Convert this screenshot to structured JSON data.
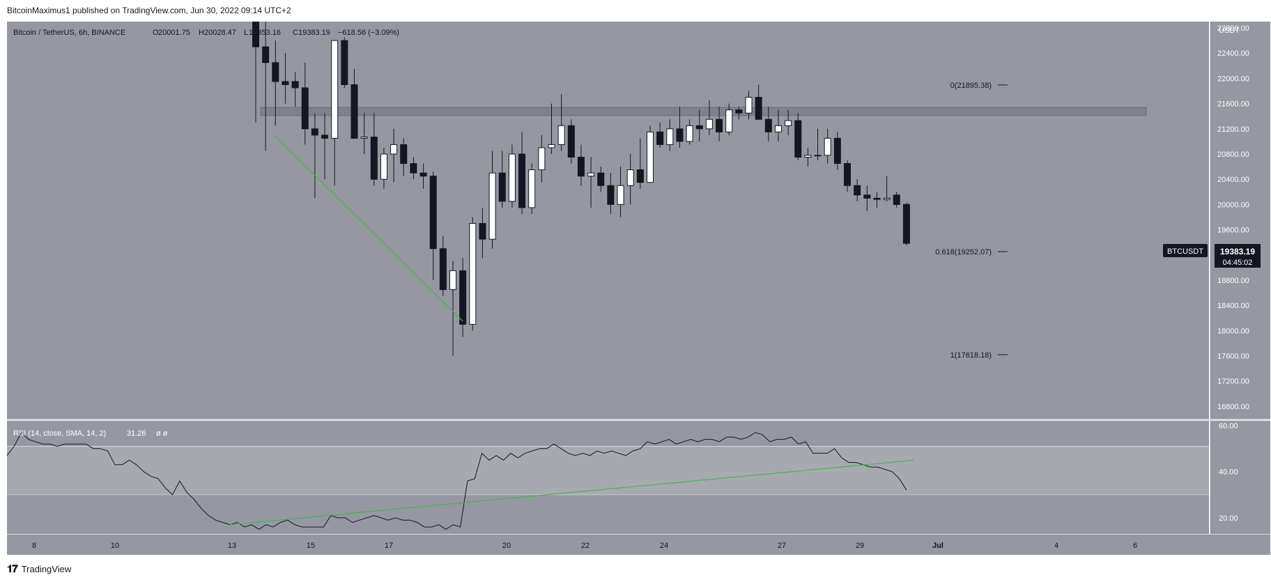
{
  "header": {
    "published": "BitcoinMaximus1 published on TradingView.com, Jun 30, 2022 09:14 UTC+2"
  },
  "legend": {
    "symbol": "Bitcoin / TetherUS, 6h, BINANCE",
    "o_label": "O",
    "o": "20001.75",
    "h_label": "H",
    "h": "20028.47",
    "l_label": "L",
    "l": "19353.16",
    "c_label": "C",
    "c": "19383.19",
    "change": "−618.56 (−3.09%)"
  },
  "price_scale": {
    "currency": "USDT",
    "ticks": [
      "22800.00",
      "22400.00",
      "22000.00",
      "21600.00",
      "21200.00",
      "20800.00",
      "20400.00",
      "20000.00",
      "19600.00",
      "18800.00",
      "18400.00",
      "18000.00",
      "17600.00",
      "17200.00",
      "16800.00"
    ]
  },
  "last_price": {
    "symbol": "BTCUSDT",
    "price": "19383.19",
    "countdown": "04:45:02"
  },
  "fib": [
    {
      "label": "0(21895.38)",
      "value": 21895.38
    },
    {
      "label": "0.618(19252.07)",
      "value": 19252.07
    },
    {
      "label": "1(17618.18)",
      "value": 17618.18
    }
  ],
  "rsi": {
    "legend": "RSI (14, close, SMA, 14, 2)",
    "value": "31.26",
    "extra": "ø ø",
    "ticks": [
      "60.00",
      "40.00",
      "20.00"
    ]
  },
  "time_axis": [
    "8",
    "10",
    "13",
    "15",
    "17",
    "20",
    "22",
    "24",
    "27",
    "29",
    "Jul",
    "4",
    "6"
  ],
  "footer": {
    "brand": "TradingView"
  },
  "colors": {
    "pane_bg": "#9598a1",
    "up_candle": "#ffffff",
    "down_candle": "#131722",
    "trendline": "#4caf50",
    "resistance_zone": "#787b86"
  },
  "chart_data": {
    "type": "candlestick",
    "title": "Bitcoin / TetherUS, 6h, BINANCE",
    "ylim": [
      16600,
      22900
    ],
    "resistance_zone": [
      21410,
      21540
    ],
    "candles": [
      {
        "o": 22900,
        "h": 23200,
        "l": 21300,
        "c": 22500
      },
      {
        "o": 22500,
        "h": 22900,
        "l": 20850,
        "c": 22250
      },
      {
        "o": 22250,
        "h": 22600,
        "l": 21250,
        "c": 21950
      },
      {
        "o": 21950,
        "h": 22400,
        "l": 21600,
        "c": 21900
      },
      {
        "o": 21950,
        "h": 22100,
        "l": 21550,
        "c": 21850
      },
      {
        "o": 21850,
        "h": 22250,
        "l": 20950,
        "c": 21200
      },
      {
        "o": 21200,
        "h": 21450,
        "l": 20100,
        "c": 21100
      },
      {
        "o": 21100,
        "h": 21450,
        "l": 20400,
        "c": 21050
      },
      {
        "o": 21050,
        "h": 22600,
        "l": 20300,
        "c": 22600
      },
      {
        "o": 22600,
        "h": 22650,
        "l": 21850,
        "c": 21900
      },
      {
        "o": 21900,
        "h": 22150,
        "l": 21100,
        "c": 21050
      },
      {
        "o": 21050,
        "h": 21450,
        "l": 20800,
        "c": 21070
      },
      {
        "o": 21070,
        "h": 21450,
        "l": 20300,
        "c": 20400
      },
      {
        "o": 20400,
        "h": 20900,
        "l": 20250,
        "c": 20800
      },
      {
        "o": 20800,
        "h": 21200,
        "l": 20350,
        "c": 20950
      },
      {
        "o": 20950,
        "h": 21050,
        "l": 20450,
        "c": 20650
      },
      {
        "o": 20650,
        "h": 20750,
        "l": 20400,
        "c": 20500
      },
      {
        "o": 20500,
        "h": 20650,
        "l": 20250,
        "c": 20450
      },
      {
        "o": 20450,
        "h": 20520,
        "l": 18800,
        "c": 19300
      },
      {
        "o": 19300,
        "h": 19500,
        "l": 18550,
        "c": 18650
      },
      {
        "o": 18650,
        "h": 19100,
        "l": 17600,
        "c": 18950
      },
      {
        "o": 18950,
        "h": 19150,
        "l": 17900,
        "c": 18100
      },
      {
        "o": 18100,
        "h": 19800,
        "l": 18000,
        "c": 19700
      },
      {
        "o": 19700,
        "h": 19950,
        "l": 19150,
        "c": 19450
      },
      {
        "o": 19450,
        "h": 20850,
        "l": 19300,
        "c": 20500
      },
      {
        "o": 20500,
        "h": 20850,
        "l": 19950,
        "c": 20050
      },
      {
        "o": 20050,
        "h": 20950,
        "l": 19950,
        "c": 20800
      },
      {
        "o": 20800,
        "h": 21150,
        "l": 19850,
        "c": 19950
      },
      {
        "o": 19950,
        "h": 20650,
        "l": 19850,
        "c": 20550
      },
      {
        "o": 20550,
        "h": 21100,
        "l": 20350,
        "c": 20900
      },
      {
        "o": 20900,
        "h": 21600,
        "l": 20800,
        "c": 20950
      },
      {
        "o": 20950,
        "h": 21750,
        "l": 20850,
        "c": 21250
      },
      {
        "o": 21250,
        "h": 21350,
        "l": 20650,
        "c": 20750
      },
      {
        "o": 20750,
        "h": 20950,
        "l": 20300,
        "c": 20450
      },
      {
        "o": 20450,
        "h": 20750,
        "l": 19950,
        "c": 20500
      },
      {
        "o": 20500,
        "h": 20600,
        "l": 20200,
        "c": 20300
      },
      {
        "o": 20300,
        "h": 20500,
        "l": 19850,
        "c": 20000
      },
      {
        "o": 20000,
        "h": 20600,
        "l": 19800,
        "c": 20300
      },
      {
        "o": 20300,
        "h": 20800,
        "l": 20000,
        "c": 20550
      },
      {
        "o": 20550,
        "h": 21050,
        "l": 20250,
        "c": 20350
      },
      {
        "o": 20350,
        "h": 21250,
        "l": 20350,
        "c": 21150
      },
      {
        "o": 21150,
        "h": 21300,
        "l": 20900,
        "c": 20950
      },
      {
        "o": 20950,
        "h": 21350,
        "l": 20850,
        "c": 21200
      },
      {
        "o": 21200,
        "h": 21550,
        "l": 20900,
        "c": 21000
      },
      {
        "o": 21000,
        "h": 21350,
        "l": 20950,
        "c": 21250
      },
      {
        "o": 21250,
        "h": 21500,
        "l": 21000,
        "c": 21200
      },
      {
        "o": 21200,
        "h": 21650,
        "l": 21100,
        "c": 21350
      },
      {
        "o": 21350,
        "h": 21550,
        "l": 21000,
        "c": 21150
      },
      {
        "o": 21150,
        "h": 21600,
        "l": 21100,
        "c": 21500
      },
      {
        "o": 21500,
        "h": 21550,
        "l": 21350,
        "c": 21450
      },
      {
        "o": 21450,
        "h": 21800,
        "l": 21350,
        "c": 21700
      },
      {
        "o": 21700,
        "h": 21900,
        "l": 21350,
        "c": 21350
      },
      {
        "o": 21350,
        "h": 21550,
        "l": 21000,
        "c": 21150
      },
      {
        "o": 21150,
        "h": 21500,
        "l": 21000,
        "c": 21250
      },
      {
        "o": 21250,
        "h": 21500,
        "l": 21100,
        "c": 21330
      },
      {
        "o": 21330,
        "h": 21450,
        "l": 20700,
        "c": 20750
      },
      {
        "o": 20750,
        "h": 20900,
        "l": 20600,
        "c": 20780
      },
      {
        "o": 20780,
        "h": 21200,
        "l": 20700,
        "c": 20780
      },
      {
        "o": 20780,
        "h": 21200,
        "l": 20650,
        "c": 21050
      },
      {
        "o": 21050,
        "h": 21150,
        "l": 20550,
        "c": 20650
      },
      {
        "o": 20650,
        "h": 20700,
        "l": 20200,
        "c": 20300
      },
      {
        "o": 20300,
        "h": 20400,
        "l": 20050,
        "c": 20150
      },
      {
        "o": 20150,
        "h": 20300,
        "l": 19900,
        "c": 20100
      },
      {
        "o": 20100,
        "h": 20200,
        "l": 19950,
        "c": 20080
      },
      {
        "o": 20080,
        "h": 20450,
        "l": 20050,
        "c": 20100
      },
      {
        "o": 20150,
        "h": 20200,
        "l": 19950,
        "c": 20000
      },
      {
        "o": 20001.75,
        "h": 20028.47,
        "l": 19353.16,
        "c": 19383.19
      }
    ],
    "rsi_ylim": [
      13,
      62
    ],
    "rsi_levels": [
      51,
      30
    ],
    "rsi_values": [
      47,
      51,
      57,
      54,
      53,
      52,
      52,
      51,
      52,
      52,
      52,
      52,
      50,
      50,
      49,
      43,
      43,
      45,
      43,
      40,
      38,
      37,
      33,
      30,
      36,
      31,
      28,
      24,
      21,
      19,
      18,
      17,
      18,
      16,
      17,
      15,
      17,
      16,
      18,
      19,
      17,
      16,
      16,
      16,
      16,
      21,
      20,
      20,
      18,
      19,
      20,
      21,
      20,
      19,
      20,
      19,
      19,
      18,
      16,
      16,
      17,
      15,
      17,
      16,
      36,
      37,
      48,
      45,
      47,
      45,
      48,
      46,
      48,
      49,
      50,
      50,
      52,
      50,
      48,
      47,
      48,
      47,
      49,
      48,
      49,
      48,
      47,
      49,
      50,
      53,
      52,
      53,
      54,
      52,
      53,
      54,
      53,
      54,
      54,
      53,
      55,
      55,
      54,
      55,
      57,
      56,
      53,
      54,
      54,
      55,
      52,
      53,
      48,
      48,
      48,
      50,
      46,
      44,
      44,
      43,
      42,
      42,
      41,
      40,
      37,
      32
    ],
    "trendlines": [
      {
        "pane": "price",
        "from": {
          "bar": 2,
          "price": 21080
        },
        "to": {
          "bar": 21,
          "price": 18150
        }
      },
      {
        "pane": "rsi",
        "from": {
          "bar": 31,
          "rsi": 17
        },
        "to": {
          "bar": 126,
          "rsi": 45
        }
      }
    ]
  }
}
